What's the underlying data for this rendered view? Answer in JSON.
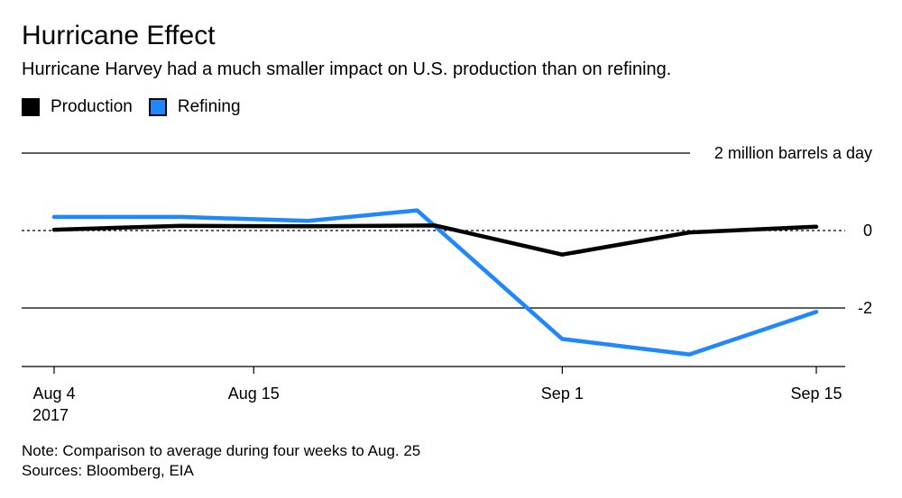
{
  "title": "Hurricane Effect",
  "subtitle": "Hurricane Harvey had a much smaller impact on U.S. production than on refining.",
  "note": "Note: Comparison to average during four weeks to Aug. 25",
  "sources": "Sources: Bloomberg, EIA",
  "chart_data": {
    "type": "line",
    "title": "Hurricane Effect",
    "subtitle": "Hurricane Harvey had a much smaller impact on U.S. production than on refining.",
    "unit_label": "2 million barrels a day",
    "xlabel": "",
    "ylabel": "",
    "x": [
      "2017-08-04",
      "2017-08-11",
      "2017-08-18",
      "2017-08-25",
      "2017-09-01",
      "2017-09-08",
      "2017-09-15"
    ],
    "x_ticks": [
      {
        "date": "2017-08-04",
        "label": "Aug 4",
        "sublabel": "2017"
      },
      {
        "date": "2017-08-15",
        "label": "Aug 15",
        "sublabel": ""
      },
      {
        "date": "2017-09-01",
        "label": "Sep 1",
        "sublabel": ""
      },
      {
        "date": "2017-09-15",
        "label": "Sep 15",
        "sublabel": ""
      }
    ],
    "y_ticks": [
      {
        "value": 2,
        "label": "2 million barrels a day",
        "style": "solid"
      },
      {
        "value": 0,
        "label": "0",
        "style": "dashed"
      },
      {
        "value": -2,
        "label": "-2",
        "style": "solid"
      }
    ],
    "ylim": [
      -3.5,
      2
    ],
    "xlim": [
      "2017-08-03",
      "2017-09-16"
    ],
    "legend_position": "top-left",
    "series": [
      {
        "name": "Production",
        "color": "#000000",
        "values": [
          0.02,
          0.12,
          0.11,
          0.13,
          -0.62,
          -0.05,
          0.1
        ]
      },
      {
        "name": "Refining",
        "color": "#1f88ff",
        "values": [
          0.35,
          0.35,
          0.25,
          0.52,
          -2.8,
          -3.2,
          -2.1
        ],
        "x": [
          "2017-08-04",
          "2017-08-11",
          "2017-08-18",
          "2017-08-24",
          "2017-09-01",
          "2017-09-08",
          "2017-09-15"
        ]
      }
    ]
  }
}
